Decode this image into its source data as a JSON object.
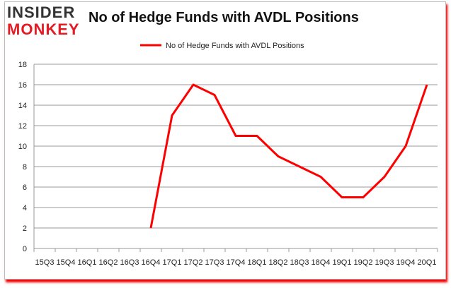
{
  "logo": {
    "line1": "INSIDER",
    "line2": "MONKEY"
  },
  "chart_data": {
    "type": "line",
    "title": "No of Hedge Funds with AVDL Positions",
    "legend": "top-center",
    "grid": true,
    "xlabel": "",
    "ylabel": "",
    "ylim": [
      0,
      18
    ],
    "yticks": [
      0,
      2,
      4,
      6,
      8,
      10,
      12,
      14,
      16,
      18
    ],
    "categories": [
      "15Q3",
      "15Q4",
      "16Q1",
      "16Q2",
      "16Q3",
      "16Q4",
      "17Q1",
      "17Q2",
      "17Q3",
      "17Q4",
      "18Q1",
      "18Q2",
      "18Q3",
      "18Q4",
      "19Q1",
      "19Q2",
      "19Q3",
      "19Q4",
      "20Q1"
    ],
    "series": [
      {
        "name": "No of Hedge Funds with AVDL Positions",
        "color": "#ff0000",
        "values": [
          null,
          null,
          null,
          null,
          null,
          2,
          13,
          16,
          15,
          11,
          11,
          9,
          8,
          7,
          5,
          5,
          7,
          10,
          16
        ]
      }
    ]
  }
}
